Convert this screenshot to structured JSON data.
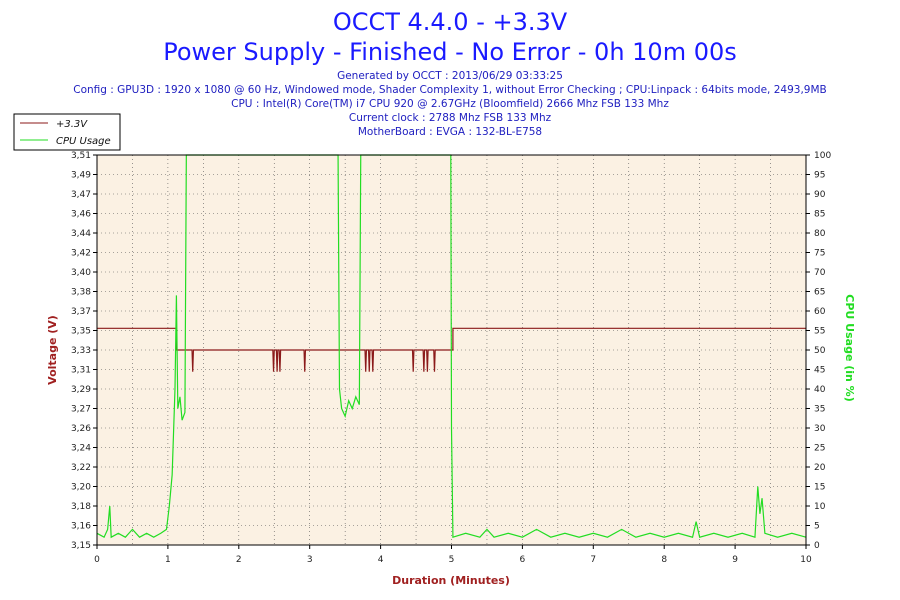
{
  "header": {
    "title": "OCCT 4.4.0 - +3.3V",
    "subtitle": "Power Supply - Finished - No Error - 0h 10m 00s",
    "info_lines": [
      "Generated by OCCT : 2013/06/29 03:33:25",
      "Config : GPU3D : 1920 x 1080 @ 60 Hz, Windowed mode, Shader Complexity 1, without Error Checking ; CPU:Linpack : 64bits mode, 2493,9MB",
      "CPU : Intel(R) Core(TM) i7 CPU 920 @ 2.67GHz (Bloomfield) 2666 Mhz FSB 133 Mhz",
      "Current clock : 2788 Mhz FSB 133 Mhz",
      "MotherBoard : EVGA : 132-BL-E758"
    ]
  },
  "legend": {
    "items": [
      {
        "label": "+3.3V",
        "color": "#8b1a1a"
      },
      {
        "label": "CPU Usage",
        "color": "#22dd22"
      }
    ]
  },
  "colors": {
    "plot_background": "#fbf1e3",
    "voltage_line": "#8b1a1a",
    "cpu_line": "#22dd22",
    "title": "#1a1aff",
    "info_text": "#2020c0"
  },
  "chart_data": {
    "type": "line",
    "xlabel": "Duration (Minutes)",
    "ylabel": "Voltage (V)",
    "y2label": "CPU Usage (in %)",
    "xlim": [
      0,
      10
    ],
    "ylim": [
      3.15,
      3.51
    ],
    "y2lim": [
      0,
      100
    ],
    "x_ticks": [
      0,
      1,
      2,
      3,
      4,
      5,
      6,
      7,
      8,
      9,
      10
    ],
    "y_ticks": [
      "3,15",
      "3,16",
      "3,18",
      "3,20",
      "3,22",
      "3,24",
      "3,26",
      "3,27",
      "3,29",
      "3,31",
      "3,33",
      "3,35",
      "3,37",
      "3,38",
      "3,40",
      "3,42",
      "3,44",
      "3,46",
      "3,47",
      "3,49",
      "3,51"
    ],
    "y2_ticks": [
      0,
      5,
      10,
      15,
      20,
      25,
      30,
      35,
      40,
      45,
      50,
      55,
      60,
      65,
      70,
      75,
      80,
      85,
      90,
      95,
      100
    ],
    "grid": true,
    "legend_position": "top-left",
    "series": [
      {
        "name": "+3.3V",
        "axis": "left",
        "color": "#8b1a1a",
        "points": [
          [
            0,
            3.35
          ],
          [
            1.12,
            3.35
          ],
          [
            1.12,
            3.33
          ],
          [
            1.34,
            3.33
          ],
          [
            1.35,
            3.31
          ],
          [
            1.36,
            3.33
          ],
          [
            2.48,
            3.33
          ],
          [
            2.49,
            3.31
          ],
          [
            2.5,
            3.33
          ],
          [
            2.53,
            3.33
          ],
          [
            2.54,
            3.31
          ],
          [
            2.55,
            3.33
          ],
          [
            2.57,
            3.33
          ],
          [
            2.58,
            3.31
          ],
          [
            2.59,
            3.33
          ],
          [
            2.92,
            3.33
          ],
          [
            2.93,
            3.31
          ],
          [
            2.94,
            3.33
          ],
          [
            3.78,
            3.33
          ],
          [
            3.79,
            3.31
          ],
          [
            3.8,
            3.33
          ],
          [
            3.83,
            3.33
          ],
          [
            3.84,
            3.31
          ],
          [
            3.85,
            3.33
          ],
          [
            3.88,
            3.33
          ],
          [
            3.89,
            3.31
          ],
          [
            3.9,
            3.33
          ],
          [
            4.45,
            3.33
          ],
          [
            4.46,
            3.31
          ],
          [
            4.47,
            3.33
          ],
          [
            4.6,
            3.33
          ],
          [
            4.61,
            3.31
          ],
          [
            4.62,
            3.33
          ],
          [
            4.65,
            3.33
          ],
          [
            4.66,
            3.31
          ],
          [
            4.67,
            3.33
          ],
          [
            4.75,
            3.33
          ],
          [
            4.76,
            3.31
          ],
          [
            4.77,
            3.33
          ],
          [
            5.02,
            3.33
          ],
          [
            5.02,
            3.35
          ],
          [
            10,
            3.35
          ]
        ]
      },
      {
        "name": "CPU Usage",
        "axis": "right",
        "color": "#22dd22",
        "points": [
          [
            0,
            3
          ],
          [
            0.1,
            2
          ],
          [
            0.15,
            4
          ],
          [
            0.18,
            10
          ],
          [
            0.2,
            2
          ],
          [
            0.3,
            3
          ],
          [
            0.4,
            2
          ],
          [
            0.5,
            4
          ],
          [
            0.6,
            2
          ],
          [
            0.7,
            3
          ],
          [
            0.8,
            2
          ],
          [
            0.9,
            3
          ],
          [
            0.98,
            4
          ],
          [
            1.02,
            10
          ],
          [
            1.06,
            18
          ],
          [
            1.1,
            40
          ],
          [
            1.12,
            64
          ],
          [
            1.14,
            35
          ],
          [
            1.17,
            38
          ],
          [
            1.2,
            32
          ],
          [
            1.24,
            34
          ],
          [
            1.26,
            100
          ],
          [
            3.4,
            100
          ],
          [
            3.42,
            40
          ],
          [
            3.45,
            35
          ],
          [
            3.5,
            33
          ],
          [
            3.55,
            37
          ],
          [
            3.6,
            35
          ],
          [
            3.65,
            38
          ],
          [
            3.7,
            36
          ],
          [
            3.72,
            100
          ],
          [
            4.99,
            100
          ],
          [
            5.0,
            30
          ],
          [
            5.02,
            2
          ],
          [
            5.2,
            3
          ],
          [
            5.4,
            2
          ],
          [
            5.5,
            4
          ],
          [
            5.6,
            2
          ],
          [
            5.8,
            3
          ],
          [
            6.0,
            2
          ],
          [
            6.2,
            4
          ],
          [
            6.4,
            2
          ],
          [
            6.6,
            3
          ],
          [
            6.8,
            2
          ],
          [
            7.0,
            3
          ],
          [
            7.2,
            2
          ],
          [
            7.4,
            4
          ],
          [
            7.6,
            2
          ],
          [
            7.8,
            3
          ],
          [
            8.0,
            2
          ],
          [
            8.2,
            3
          ],
          [
            8.4,
            2
          ],
          [
            8.45,
            6
          ],
          [
            8.5,
            2
          ],
          [
            8.7,
            3
          ],
          [
            8.9,
            2
          ],
          [
            9.1,
            3
          ],
          [
            9.28,
            2
          ],
          [
            9.32,
            15
          ],
          [
            9.35,
            8
          ],
          [
            9.38,
            12
          ],
          [
            9.42,
            3
          ],
          [
            9.6,
            2
          ],
          [
            9.8,
            3
          ],
          [
            10,
            2
          ]
        ]
      }
    ]
  }
}
